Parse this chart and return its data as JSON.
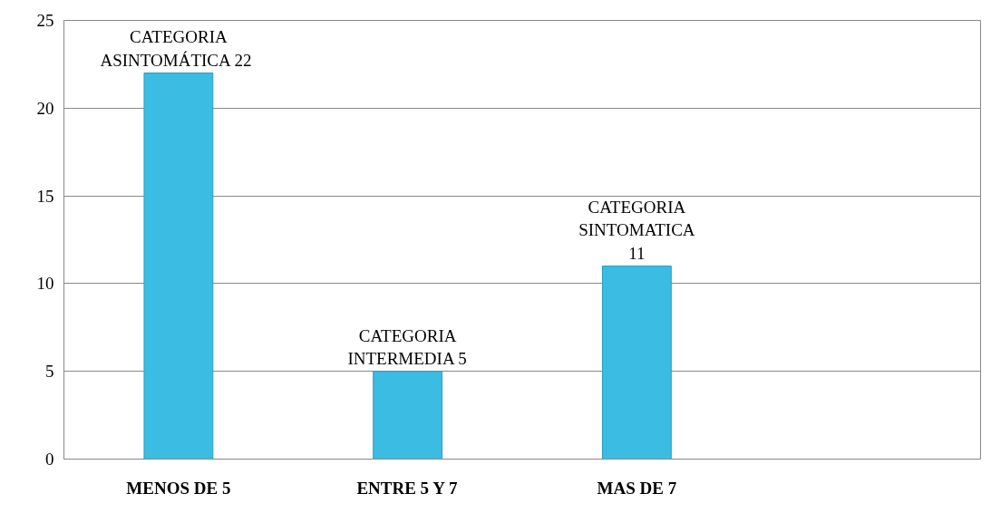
{
  "chart_data": {
    "type": "bar",
    "categories": [
      "MENOS DE 5",
      "ENTRE 5 Y 7",
      "MAS DE 7",
      null
    ],
    "values": [
      22,
      5,
      11,
      null
    ],
    "color": "#3bbde3",
    "value_labels": [
      "CATEGORIA\nASINTOMÁTICA  22",
      "CATEGORIA\nINTERMEDIA 5",
      "CATEGORIA\nSINTOMATICA\n11",
      null
    ],
    "ylim": [
      0,
      25
    ],
    "yticks": [
      0,
      5,
      10,
      15,
      20,
      25
    ],
    "grid": "y"
  }
}
